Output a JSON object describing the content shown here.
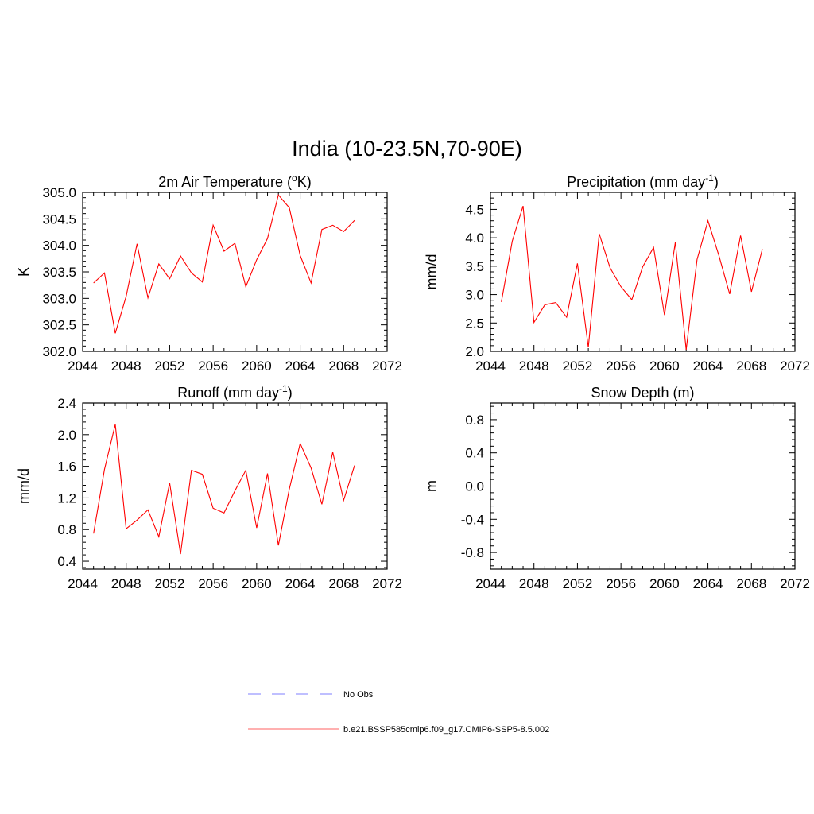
{
  "figure": {
    "title": "India (10-23.5N,70-90E)"
  },
  "legend": {
    "entries": [
      {
        "label": "No Obs",
        "style": "dashed",
        "color": "#9999ff"
      },
      {
        "label": "b.e21.BSSP585cmip6.f09_g17.CMIP6-SSP5-8.5.002",
        "style": "solid",
        "color": "#ff8080"
      }
    ]
  },
  "chart_data": [
    {
      "type": "line",
      "title": "2m Air Temperature (",
      "title_sup": "o",
      "title_after": "K)",
      "ylabel": "K",
      "xlim": [
        2044,
        2072
      ],
      "ylim": [
        302.0,
        305.0
      ],
      "xticks": [
        2044,
        2048,
        2052,
        2056,
        2060,
        2064,
        2068,
        2072
      ],
      "yticks": [
        302.0,
        302.5,
        303.0,
        303.5,
        304.0,
        304.5,
        305.0
      ],
      "ytick_decimals": 1,
      "color": "#ff0000",
      "x": [
        2045,
        2046,
        2047,
        2048,
        2049,
        2050,
        2051,
        2052,
        2053,
        2054,
        2055,
        2056,
        2057,
        2058,
        2059,
        2060,
        2061,
        2062,
        2063,
        2064,
        2065,
        2066,
        2067,
        2068,
        2069
      ],
      "y": [
        303.29,
        303.48,
        302.34,
        303.04,
        304.03,
        303.01,
        303.65,
        303.37,
        303.8,
        303.48,
        303.31,
        304.38,
        303.89,
        304.04,
        303.22,
        303.73,
        304.13,
        304.95,
        304.71,
        303.81,
        303.29,
        304.3,
        304.38,
        304.26,
        304.47
      ]
    },
    {
      "type": "line",
      "title": "Precipitation (mm day",
      "title_sup": "-1",
      "title_after": ")",
      "ylabel": "mm/d",
      "xlim": [
        2044,
        2072
      ],
      "ylim": [
        2.0,
        4.8
      ],
      "xticks": [
        2044,
        2048,
        2052,
        2056,
        2060,
        2064,
        2068,
        2072
      ],
      "yticks": [
        2.0,
        2.5,
        3.0,
        3.5,
        4.0,
        4.5
      ],
      "ytick_decimals": 1,
      "color": "#ff0000",
      "x": [
        2045,
        2046,
        2047,
        2048,
        2049,
        2050,
        2051,
        2052,
        2053,
        2054,
        2055,
        2056,
        2057,
        2058,
        2059,
        2060,
        2061,
        2062,
        2063,
        2064,
        2065,
        2066,
        2067,
        2068,
        2069
      ],
      "y": [
        2.87,
        3.94,
        4.56,
        2.51,
        2.82,
        2.86,
        2.6,
        3.55,
        2.07,
        4.07,
        3.47,
        3.14,
        2.91,
        3.49,
        3.83,
        2.64,
        3.92,
        2.03,
        3.62,
        4.3,
        3.69,
        3.01,
        4.04,
        3.05,
        3.8
      ]
    },
    {
      "type": "line",
      "title": "Runoff (mm day",
      "title_sup": "-1",
      "title_after": ")",
      "ylabel": "mm/d",
      "xlim": [
        2044,
        2072
      ],
      "ylim": [
        0.3,
        2.4
      ],
      "xticks": [
        2044,
        2048,
        2052,
        2056,
        2060,
        2064,
        2068,
        2072
      ],
      "yticks": [
        0.4,
        0.8,
        1.2,
        1.6,
        2.0,
        2.4
      ],
      "ytick_decimals": 1,
      "color": "#ff0000",
      "x": [
        2045,
        2046,
        2047,
        2048,
        2049,
        2050,
        2051,
        2052,
        2053,
        2054,
        2055,
        2056,
        2057,
        2058,
        2059,
        2060,
        2061,
        2062,
        2063,
        2064,
        2065,
        2066,
        2067,
        2068,
        2069
      ],
      "y": [
        0.75,
        1.56,
        2.13,
        0.81,
        0.92,
        1.05,
        0.71,
        1.39,
        0.49,
        1.55,
        1.5,
        1.07,
        1.01,
        1.29,
        1.55,
        0.82,
        1.51,
        0.6,
        1.31,
        1.89,
        1.58,
        1.12,
        1.78,
        1.17,
        1.61
      ]
    },
    {
      "type": "line",
      "title": "Snow Depth (m)",
      "title_sup": "",
      "title_after": "",
      "ylabel": "m",
      "xlim": [
        2044,
        2072
      ],
      "ylim": [
        -1.0,
        1.0
      ],
      "xticks": [
        2044,
        2048,
        2052,
        2056,
        2060,
        2064,
        2068,
        2072
      ],
      "yticks": [
        -0.8,
        -0.4,
        0.0,
        0.4,
        0.8
      ],
      "ytick_decimals": 1,
      "color": "#ff0000",
      "x": [
        2045,
        2046,
        2047,
        2048,
        2049,
        2050,
        2051,
        2052,
        2053,
        2054,
        2055,
        2056,
        2057,
        2058,
        2059,
        2060,
        2061,
        2062,
        2063,
        2064,
        2065,
        2066,
        2067,
        2068,
        2069
      ],
      "y": [
        0,
        0,
        0,
        0,
        0,
        0,
        0,
        0,
        0,
        0,
        0,
        0,
        0,
        0,
        0,
        0,
        0,
        0,
        0,
        0,
        0,
        0,
        0,
        0,
        0
      ]
    }
  ]
}
